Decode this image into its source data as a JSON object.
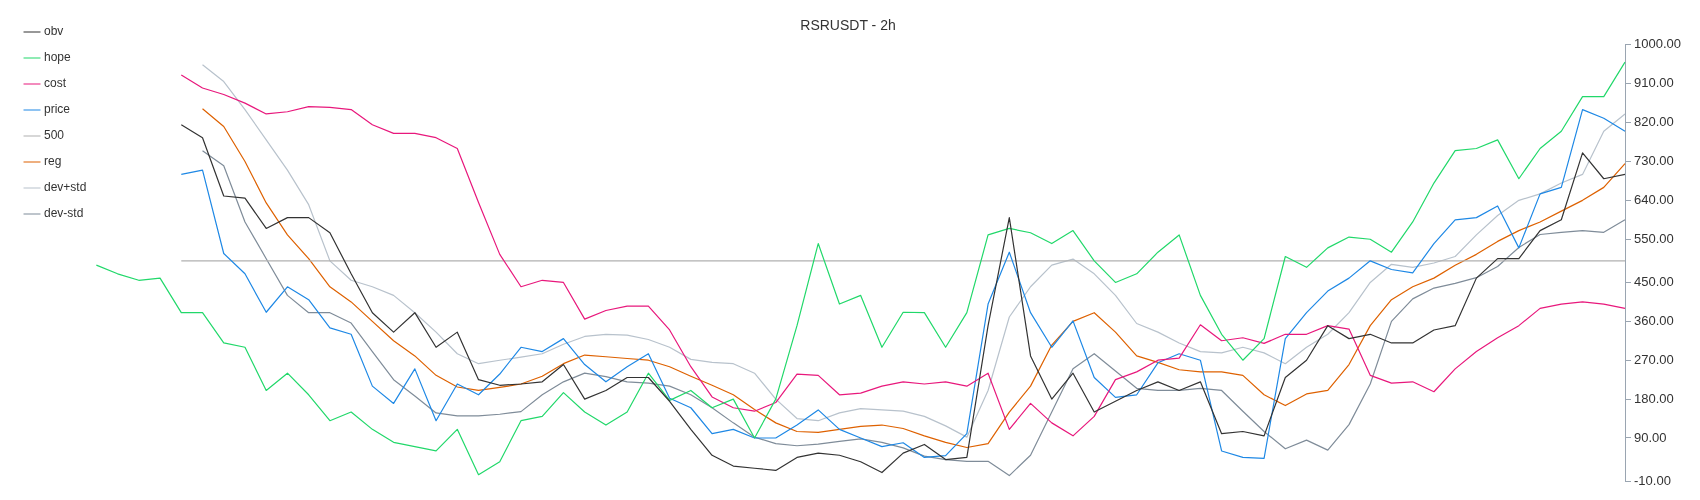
{
  "chart_data": {
    "type": "line",
    "title": "RSRUSDT - 2h",
    "categories": [
      null,
      null,
      null,
      null,
      null,
      null,
      null,
      null,
      null,
      null,
      null,
      null,
      null,
      null,
      null,
      null,
      null,
      null,
      null,
      null,
      null,
      null,
      null,
      null,
      null,
      null,
      null,
      null,
      null,
      null,
      null,
      null,
      null,
      null,
      null,
      null,
      null,
      null,
      null,
      null,
      null,
      null,
      null,
      null,
      null,
      null,
      null,
      null,
      null,
      null,
      null,
      null,
      null,
      null,
      null,
      null,
      null,
      null,
      null,
      null,
      null,
      null,
      null,
      null,
      null,
      null,
      null,
      null,
      null,
      null,
      null,
      null,
      null
    ],
    "series": [
      {
        "name": "obv",
        "color": "#333333",
        "values": [
          null,
          null,
          null,
          null,
          815,
          785,
          650,
          645,
          575,
          600,
          600,
          565,
          470,
          380,
          335,
          380,
          300,
          335,
          225,
          212,
          215,
          220,
          260,
          180,
          200,
          230,
          230,
          175,
          110,
          50,
          25,
          20,
          15,
          45,
          55,
          50,
          35,
          10,
          55,
          75,
          40,
          45,
          350,
          600,
          280,
          180,
          240,
          150,
          175,
          200,
          220,
          200,
          220,
          100,
          105,
          95,
          230,
          270,
          350,
          320,
          330,
          310,
          310,
          340,
          350,
          460,
          505,
          505,
          570,
          595,
          750,
          690,
          700
        ]
      },
      {
        "name": "hope",
        "color": "#21d86a",
        "values": [
          490,
          470,
          455,
          460,
          380,
          380,
          310,
          300,
          200,
          240,
          190,
          130,
          150,
          110,
          80,
          70,
          60,
          110,
          5,
          35,
          130,
          140,
          195,
          150,
          120,
          150,
          240,
          177,
          200,
          160,
          180,
          90,
          180,
          350,
          540,
          400,
          420,
          300,
          381,
          380,
          300,
          380,
          560,
          575,
          565,
          540,
          570,
          500,
          450,
          470,
          520,
          560,
          420,
          330,
          270,
          320,
          510,
          485,
          530,
          555,
          550,
          520,
          590,
          680,
          755,
          760,
          780,
          690,
          760,
          800,
          880,
          880,
          960
        ]
      },
      {
        "name": "cost",
        "color": "#e8187c",
        "values": [
          null,
          null,
          null,
          null,
          930,
          900,
          885,
          865,
          840,
          845,
          857,
          855,
          850,
          815,
          795,
          795,
          785,
          760,
          635,
          515,
          440,
          455,
          450,
          365,
          385,
          395,
          395,
          340,
          255,
          185,
          160,
          152,
          172,
          238,
          235,
          190,
          194,
          210,
          220,
          215,
          220,
          210,
          240,
          110,
          170,
          125,
          95,
          140,
          225,
          243,
          270,
          275,
          352,
          315,
          322,
          309,
          330,
          330,
          350,
          342,
          235,
          217,
          220,
          197,
          250,
          290,
          322,
          350,
          390,
          400,
          405,
          400,
          390
        ]
      },
      {
        "name": "price",
        "color": "#1e88e5",
        "values": [
          null,
          null,
          null,
          null,
          700,
          710,
          517,
          470,
          381,
          440,
          410,
          345,
          330,
          210,
          170,
          250,
          130,
          215,
          190,
          238,
          300,
          290,
          320,
          260,
          220,
          255,
          285,
          182,
          160,
          100,
          110,
          90,
          90,
          120,
          155,
          110,
          90,
          70,
          79,
          45,
          49,
          100,
          400,
          520,
          380,
          300,
          361,
          230,
          184,
          190,
          264,
          285,
          270,
          60,
          45,
          43,
          320,
          380,
          430,
          460,
          500,
          480,
          472,
          540,
          595,
          600,
          627,
          530,
          655,
          670,
          850,
          830,
          800
        ]
      },
      {
        "name": "500",
        "color": "#b0b0b0",
        "values": [
          null,
          null,
          null,
          null,
          500,
          500,
          500,
          500,
          500,
          500,
          500,
          500,
          500,
          500,
          500,
          500,
          500,
          500,
          500,
          500,
          500,
          500,
          500,
          500,
          500,
          500,
          500,
          500,
          500,
          500,
          500,
          500,
          500,
          500,
          500,
          500,
          500,
          500,
          500,
          500,
          500,
          500,
          500,
          500,
          500,
          500,
          500,
          500,
          500,
          500,
          500,
          500,
          500,
          500,
          500,
          500,
          500,
          500,
          500,
          500,
          500,
          500,
          500,
          500,
          500,
          500,
          500,
          500,
          500,
          500,
          500,
          500,
          500
        ]
      },
      {
        "name": "reg",
        "color": "#de6100",
        "values": [
          null,
          null,
          null,
          null,
          null,
          852,
          811,
          730,
          634,
          560,
          505,
          440,
          405,
          360,
          315,
          280,
          235,
          208,
          200,
          207,
          215,
          233,
          262,
          282,
          278,
          274,
          270,
          255,
          233,
          212,
          190,
          156,
          125,
          105,
          103,
          110,
          117,
          120,
          112,
          95,
          80,
          68,
          77,
          150,
          210,
          305,
          360,
          380,
          335,
          280,
          265,
          248,
          243,
          243,
          235,
          190,
          165,
          192,
          200,
          260,
          350,
          410,
          440,
          460,
          490,
          515,
          545,
          570,
          590,
          615,
          640,
          670,
          725
        ]
      },
      {
        "name": "dev+std",
        "color": "#b8c2cc",
        "values": [
          null,
          null,
          null,
          null,
          null,
          954,
          915,
          850,
          780,
          710,
          630,
          500,
          455,
          440,
          420,
          380,
          335,
          285,
          262,
          270,
          277,
          285,
          307,
          325,
          330,
          328,
          318,
          300,
          272,
          265,
          262,
          240,
          180,
          135,
          130,
          148,
          158,
          155,
          152,
          140,
          118,
          92,
          200,
          370,
          440,
          490,
          504,
          470,
          420,
          355,
          335,
          310,
          290,
          287,
          300,
          287,
          262,
          300,
          330,
          380,
          450,
          492,
          485,
          495,
          510,
          560,
          605,
          640,
          655,
          680,
          700,
          800,
          840
        ]
      },
      {
        "name": "dev-std",
        "color": "#7f8c99",
        "values": [
          null,
          null,
          null,
          null,
          null,
          755,
          720,
          590,
          505,
          420,
          380,
          380,
          356,
          290,
          225,
          187,
          148,
          141,
          141,
          145,
          151,
          190,
          220,
          240,
          232,
          220,
          217,
          210,
          190,
          160,
          125,
          92,
          77,
          72,
          76,
          82,
          88,
          80,
          67,
          48,
          40,
          36,
          36,
          3,
          50,
          150,
          250,
          285,
          245,
          205,
          200,
          200,
          205,
          200,
          152,
          105,
          65,
          85,
          62,
          121,
          215,
          360,
          412,
          437,
          448,
          461,
          487,
          531,
          561,
          566,
          570,
          566,
          595
        ]
      }
    ],
    "ylim": [
      -10,
      1000
    ],
    "yticks": [
      {
        "value": 1000,
        "label": "1000.00"
      },
      {
        "value": 910,
        "label": "910.00"
      },
      {
        "value": 820,
        "label": "820.00"
      },
      {
        "value": 730,
        "label": "730.00"
      },
      {
        "value": 640,
        "label": "640.00"
      },
      {
        "value": 550,
        "label": "550.00"
      },
      {
        "value": 450,
        "label": "450.00"
      },
      {
        "value": 360,
        "label": "360.00"
      },
      {
        "value": 270,
        "label": "270.00"
      },
      {
        "value": 180,
        "label": "180.00"
      },
      {
        "value": 90,
        "label": "90.00"
      },
      {
        "value": -10,
        "label": "-10.00"
      }
    ],
    "grid": false,
    "legend": "top left",
    "marker": "none",
    "line_style": "solid",
    "tick_labels": "y"
  }
}
